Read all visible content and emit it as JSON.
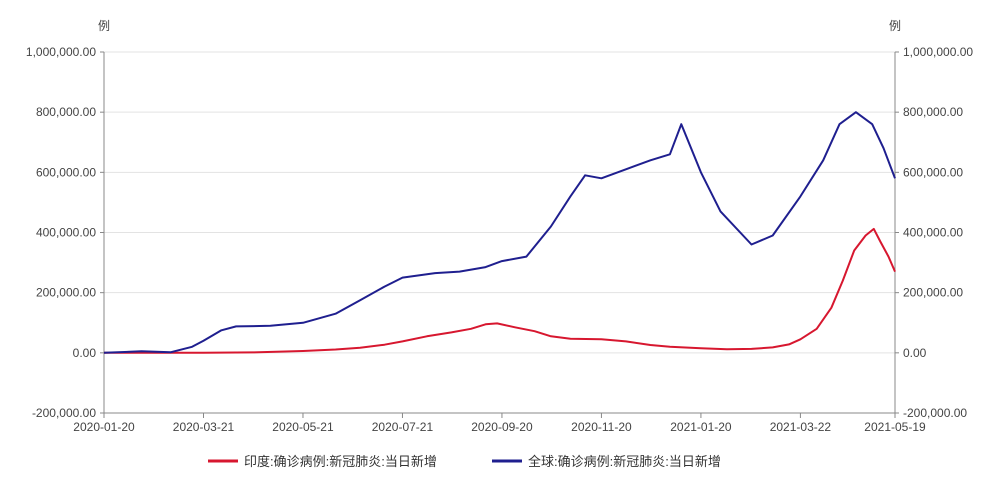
{
  "chart_data": {
    "type": "line",
    "left_axis_unit": "例",
    "right_axis_unit": "例",
    "y_ticks": [
      "1,000,000.00",
      "800,000.00",
      "600,000.00",
      "400,000.00",
      "200,000.00",
      "0.00",
      "-200,000.00"
    ],
    "y_tick_values": [
      1000000,
      800000,
      600000,
      400000,
      200000,
      0,
      -200000
    ],
    "ylim": [
      -200000,
      1000000
    ],
    "x_range": [
      "2020-01-20",
      "2021-05-19"
    ],
    "x_ticks": [
      "2020-01-20",
      "2020-03-21",
      "2020-05-21",
      "2020-07-21",
      "2020-09-20",
      "2020-11-20",
      "2021-01-20",
      "2021-03-22",
      "2021-05-19"
    ],
    "grid": "horizontal",
    "legend_position": "bottom",
    "series": [
      {
        "name": "印度:确诊病例:新冠肺炎:当日新增",
        "color": "#d7172f",
        "points": [
          [
            "2020-01-20",
            0
          ],
          [
            "2020-03-21",
            300
          ],
          [
            "2020-04-20",
            1500
          ],
          [
            "2020-05-21",
            6000
          ],
          [
            "2020-06-10",
            11000
          ],
          [
            "2020-06-25",
            17000
          ],
          [
            "2020-07-10",
            27000
          ],
          [
            "2020-07-21",
            38000
          ],
          [
            "2020-08-05",
            55000
          ],
          [
            "2020-08-20",
            68000
          ],
          [
            "2020-09-01",
            80000
          ],
          [
            "2020-09-10",
            95000
          ],
          [
            "2020-09-17",
            98000
          ],
          [
            "2020-09-28",
            85000
          ],
          [
            "2020-10-10",
            72000
          ],
          [
            "2020-10-20",
            55000
          ],
          [
            "2020-11-01",
            47000
          ],
          [
            "2020-11-20",
            45000
          ],
          [
            "2020-12-05",
            38000
          ],
          [
            "2020-12-20",
            26000
          ],
          [
            "2021-01-01",
            20000
          ],
          [
            "2021-01-20",
            15000
          ],
          [
            "2021-02-05",
            12000
          ],
          [
            "2021-02-20",
            13000
          ],
          [
            "2021-03-05",
            18000
          ],
          [
            "2021-03-15",
            28000
          ],
          [
            "2021-03-22",
            45000
          ],
          [
            "2021-04-01",
            80000
          ],
          [
            "2021-04-10",
            150000
          ],
          [
            "2021-04-17",
            240000
          ],
          [
            "2021-04-24",
            340000
          ],
          [
            "2021-05-01",
            390000
          ],
          [
            "2021-05-06",
            412000
          ],
          [
            "2021-05-10",
            370000
          ],
          [
            "2021-05-15",
            320000
          ],
          [
            "2021-05-19",
            270000
          ]
        ]
      },
      {
        "name": "全球:确诊病例:新冠肺炎:当日新增",
        "color": "#1f1f8f",
        "points": [
          [
            "2020-01-20",
            0
          ],
          [
            "2020-02-12",
            5000
          ],
          [
            "2020-03-01",
            2000
          ],
          [
            "2020-03-14",
            20000
          ],
          [
            "2020-03-21",
            40000
          ],
          [
            "2020-04-01",
            75000
          ],
          [
            "2020-04-10",
            88000
          ],
          [
            "2020-05-01",
            90000
          ],
          [
            "2020-05-21",
            100000
          ],
          [
            "2020-06-10",
            130000
          ],
          [
            "2020-06-25",
            175000
          ],
          [
            "2020-07-10",
            220000
          ],
          [
            "2020-07-21",
            250000
          ],
          [
            "2020-08-10",
            265000
          ],
          [
            "2020-08-25",
            270000
          ],
          [
            "2020-09-10",
            285000
          ],
          [
            "2020-09-20",
            305000
          ],
          [
            "2020-10-05",
            320000
          ],
          [
            "2020-10-20",
            420000
          ],
          [
            "2020-11-01",
            520000
          ],
          [
            "2020-11-10",
            590000
          ],
          [
            "2020-11-20",
            580000
          ],
          [
            "2020-12-05",
            610000
          ],
          [
            "2020-12-20",
            640000
          ],
          [
            "2021-01-01",
            660000
          ],
          [
            "2021-01-08",
            760000
          ],
          [
            "2021-01-20",
            600000
          ],
          [
            "2021-02-01",
            470000
          ],
          [
            "2021-02-20",
            360000
          ],
          [
            "2021-03-05",
            390000
          ],
          [
            "2021-03-22",
            520000
          ],
          [
            "2021-04-05",
            640000
          ],
          [
            "2021-04-15",
            760000
          ],
          [
            "2021-04-25",
            800000
          ],
          [
            "2021-05-05",
            760000
          ],
          [
            "2021-05-12",
            680000
          ],
          [
            "2021-05-19",
            580000
          ]
        ]
      }
    ]
  }
}
